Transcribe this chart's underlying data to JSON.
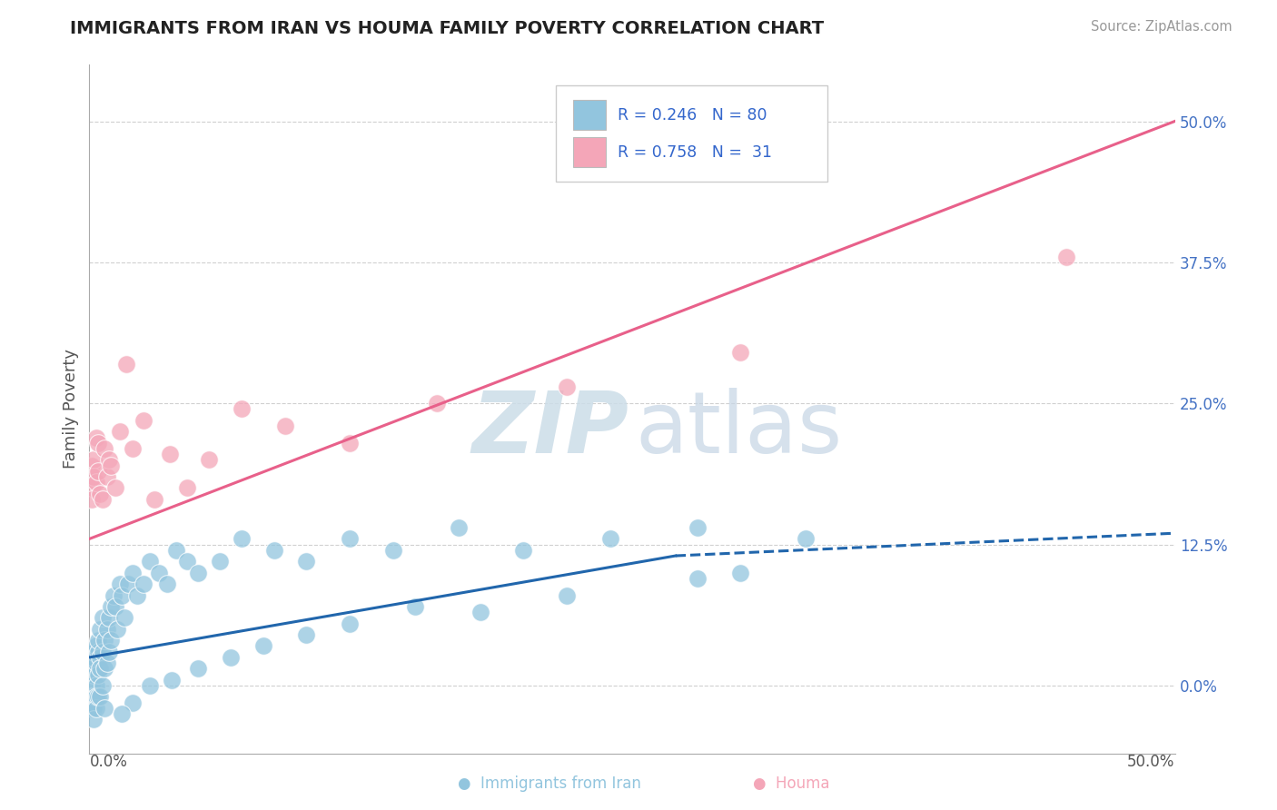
{
  "title": "IMMIGRANTS FROM IRAN VS HOUMA FAMILY POVERTY CORRELATION CHART",
  "source": "Source: ZipAtlas.com",
  "ylabel": "Family Poverty",
  "right_ytick_vals": [
    0.0,
    0.125,
    0.25,
    0.375,
    0.5
  ],
  "right_ytick_labels": [
    "0.0%",
    "12.5%",
    "25.0%",
    "37.5%",
    "50.0%"
  ],
  "xmin": 0.0,
  "xmax": 0.5,
  "ymin": -0.06,
  "ymax": 0.55,
  "legend_r1": "R = 0.246",
  "legend_n1": "N = 80",
  "legend_r2": "R = 0.758",
  "legend_n2": "N =  31",
  "series1_color": "#92c5de",
  "series2_color": "#f4a6b8",
  "trendline1_color": "#2166ac",
  "trendline2_color": "#e8608a",
  "trendline1_solid_xmax": 0.27,
  "trendline1_ystart": 0.025,
  "trendline1_yend_solid": 0.115,
  "trendline1_yend_dash": 0.135,
  "trendline2_ystart": 0.13,
  "trendline2_yend": 0.5,
  "blue_scatter_x": [
    0.001,
    0.001,
    0.001,
    0.001,
    0.001,
    0.001,
    0.001,
    0.001,
    0.002,
    0.002,
    0.002,
    0.002,
    0.002,
    0.002,
    0.003,
    0.003,
    0.003,
    0.003,
    0.003,
    0.004,
    0.004,
    0.004,
    0.004,
    0.005,
    0.005,
    0.005,
    0.005,
    0.006,
    0.006,
    0.006,
    0.007,
    0.007,
    0.007,
    0.008,
    0.008,
    0.009,
    0.009,
    0.01,
    0.01,
    0.011,
    0.012,
    0.013,
    0.014,
    0.015,
    0.016,
    0.018,
    0.02,
    0.022,
    0.025,
    0.028,
    0.032,
    0.036,
    0.04,
    0.045,
    0.05,
    0.06,
    0.07,
    0.085,
    0.1,
    0.12,
    0.14,
    0.17,
    0.2,
    0.24,
    0.28,
    0.33,
    0.28,
    0.3,
    0.22,
    0.18,
    0.15,
    0.12,
    0.1,
    0.08,
    0.065,
    0.05,
    0.038,
    0.028,
    0.02,
    0.015
  ],
  "blue_scatter_y": [
    0.02,
    0.01,
    0.03,
    0.0,
    -0.01,
    -0.02,
    0.015,
    -0.015,
    0.025,
    0.01,
    -0.01,
    -0.02,
    0.03,
    -0.03,
    0.02,
    0.0,
    -0.01,
    0.035,
    -0.02,
    0.03,
    0.01,
    -0.01,
    0.04,
    0.025,
    -0.01,
    0.05,
    0.015,
    0.03,
    0.0,
    0.06,
    0.04,
    0.015,
    -0.02,
    0.05,
    0.02,
    0.06,
    0.03,
    0.07,
    0.04,
    0.08,
    0.07,
    0.05,
    0.09,
    0.08,
    0.06,
    0.09,
    0.1,
    0.08,
    0.09,
    0.11,
    0.1,
    0.09,
    0.12,
    0.11,
    0.1,
    0.11,
    0.13,
    0.12,
    0.11,
    0.13,
    0.12,
    0.14,
    0.12,
    0.13,
    0.14,
    0.13,
    0.095,
    0.1,
    0.08,
    0.065,
    0.07,
    0.055,
    0.045,
    0.035,
    0.025,
    0.015,
    0.005,
    0.0,
    -0.015,
    -0.025
  ],
  "pink_scatter_x": [
    0.001,
    0.001,
    0.001,
    0.002,
    0.002,
    0.003,
    0.003,
    0.004,
    0.004,
    0.005,
    0.006,
    0.007,
    0.008,
    0.009,
    0.01,
    0.012,
    0.014,
    0.017,
    0.02,
    0.025,
    0.03,
    0.037,
    0.045,
    0.055,
    0.07,
    0.09,
    0.12,
    0.16,
    0.22,
    0.3,
    0.45
  ],
  "pink_scatter_y": [
    0.175,
    0.195,
    0.165,
    0.2,
    0.185,
    0.22,
    0.18,
    0.215,
    0.19,
    0.17,
    0.165,
    0.21,
    0.185,
    0.2,
    0.195,
    0.175,
    0.225,
    0.285,
    0.21,
    0.235,
    0.165,
    0.205,
    0.175,
    0.2,
    0.245,
    0.23,
    0.215,
    0.25,
    0.265,
    0.295,
    0.38
  ]
}
